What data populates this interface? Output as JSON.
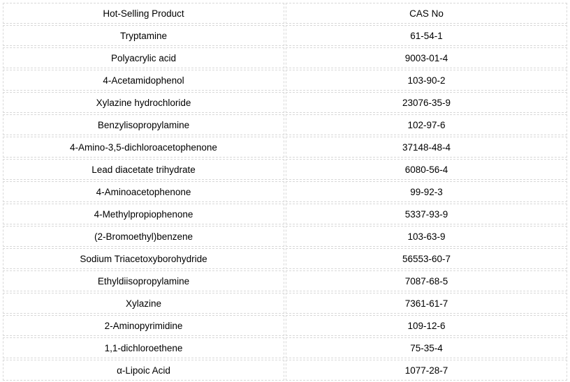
{
  "table": {
    "type": "table",
    "columns": [
      "Hot-Selling Product",
      "CAS No"
    ],
    "rows": [
      [
        "Tryptamine",
        "61-54-1"
      ],
      [
        "Polyacrylic acid",
        "9003-01-4"
      ],
      [
        "4-Acetamidophenol",
        "103-90-2"
      ],
      [
        "Xylazine hydrochloride",
        "23076-35-9"
      ],
      [
        "Benzylisopropylamine",
        "102-97-6"
      ],
      [
        "4-Amino-3,5-dichloroacetophenone",
        "37148-48-4"
      ],
      [
        "Lead diacetate trihydrate",
        "6080-56-4"
      ],
      [
        "4-Aminoacetophenone",
        "99-92-3"
      ],
      [
        "4-Methylpropiophenone",
        "5337-93-9"
      ],
      [
        "(2-Bromoethyl)benzene",
        "103-63-9"
      ],
      [
        "Sodium Triacetoxyborohydride",
        "56553-60-7"
      ],
      [
        "Ethyldiisopropylamine",
        "7087-68-5"
      ],
      [
        "Xylazine",
        "7361-61-7"
      ],
      [
        "2-Aminopyrimidine",
        "109-12-6"
      ],
      [
        "1,1-dichloroethene",
        "75-35-4"
      ],
      [
        "α-Lipoic Acid",
        "1077-28-7"
      ]
    ],
    "border_color": "#d8d8d8",
    "border_style": "dashed",
    "text_color": "#000000",
    "background_color": "#ffffff",
    "font_size": 13.5,
    "cell_padding": 5,
    "column_widths": [
      "50%",
      "50%"
    ],
    "text_align": "center"
  }
}
